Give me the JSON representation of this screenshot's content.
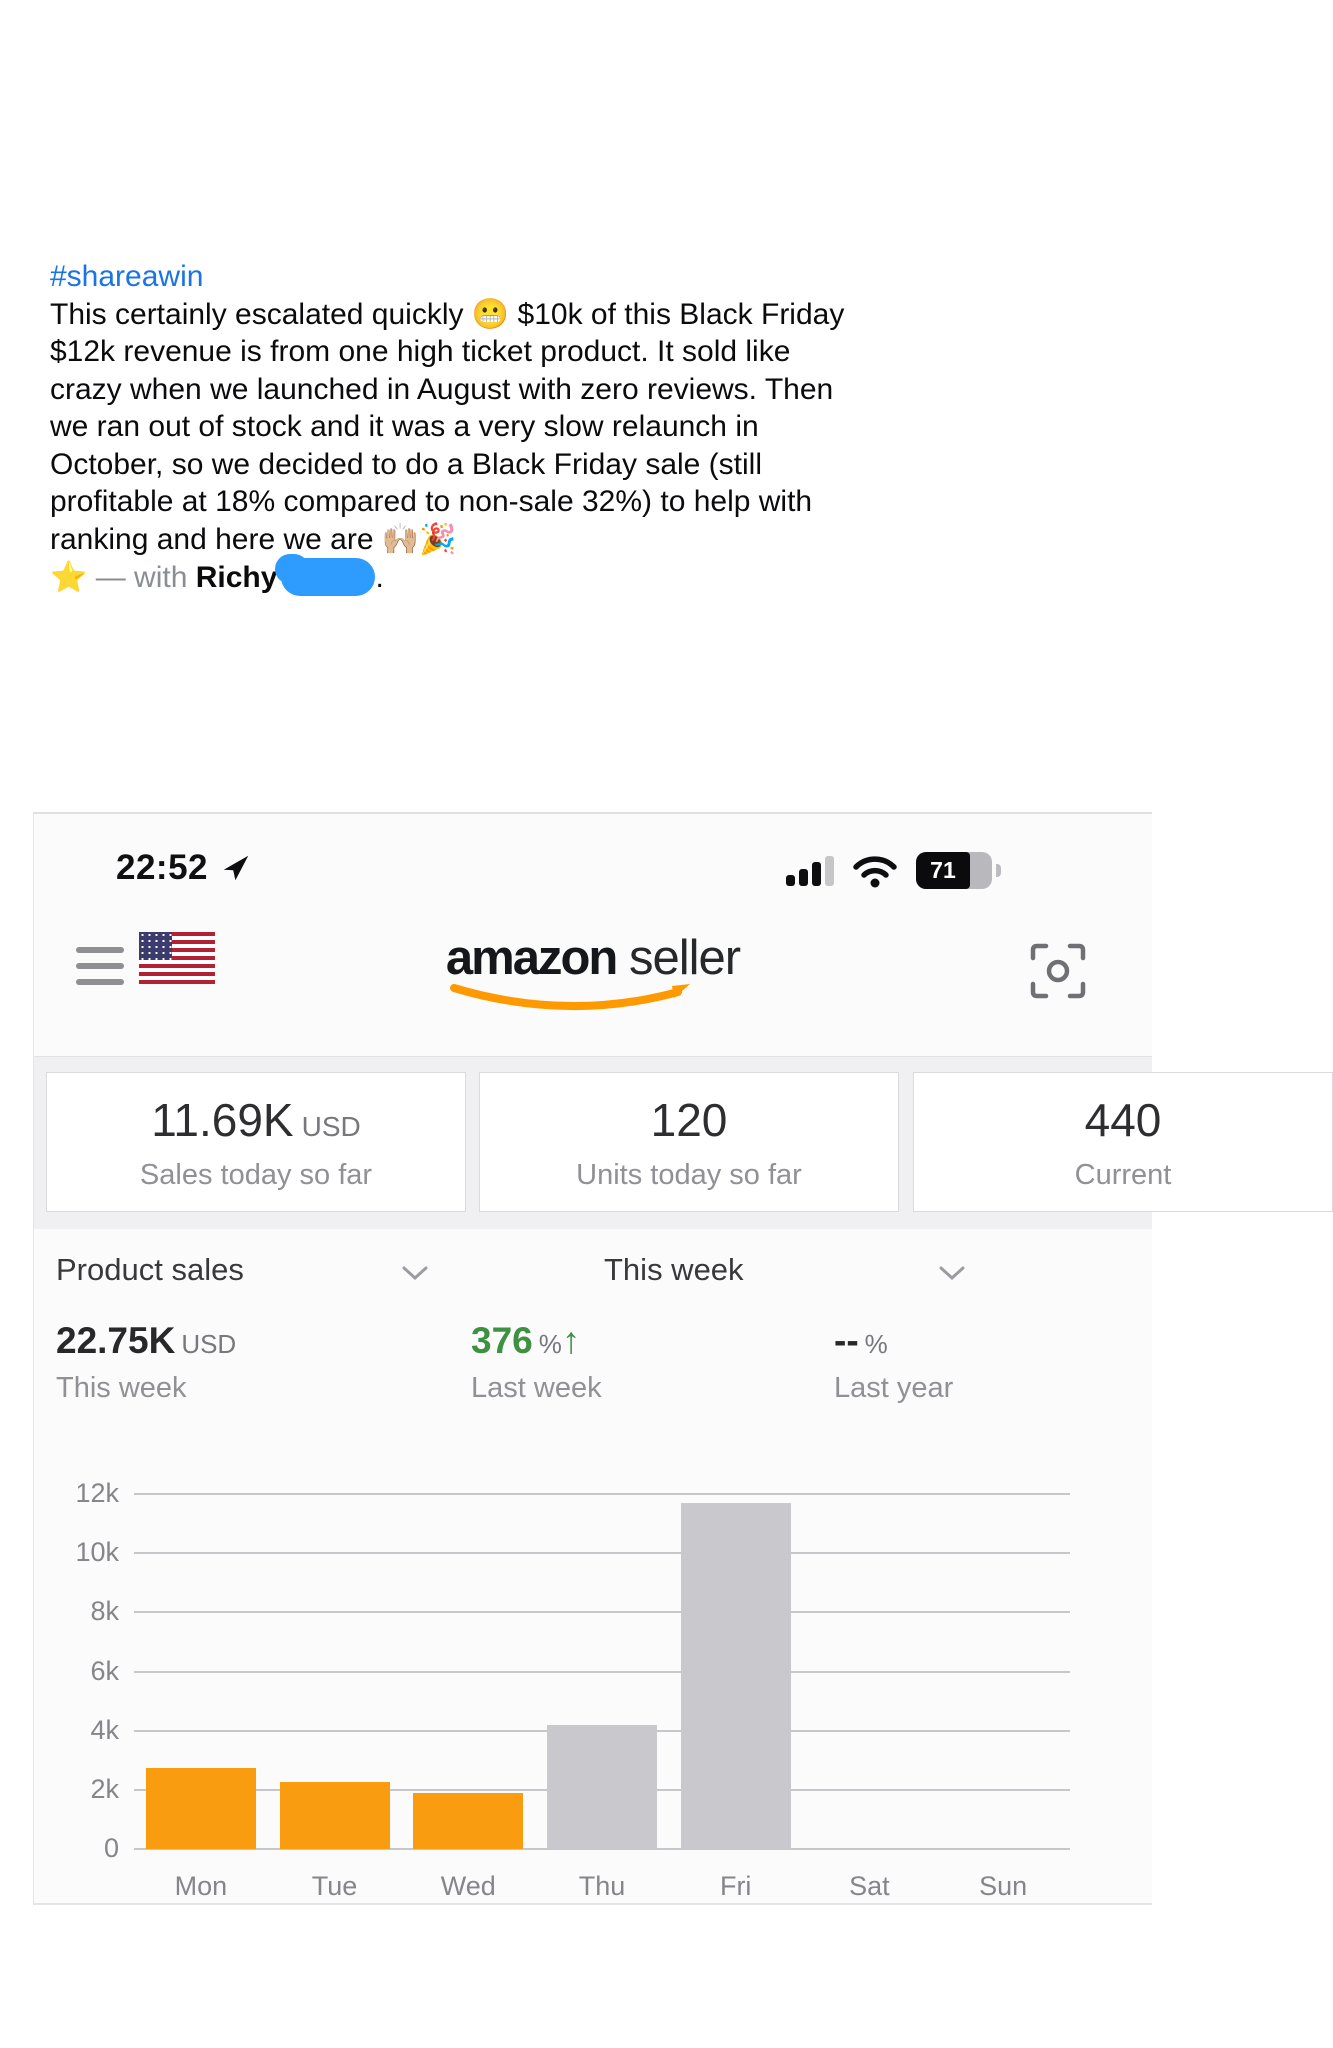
{
  "post": {
    "hashtag": "#shareawin",
    "body": "This certainly escalated quickly 😬 $10k of this Black Friday $12k revenue is from one high ticket product. It sold like crazy when we launched in August with zero reviews. Then we ran out of stock and it was a very slow relaunch in October, so we decided to do a Black Friday sale (still profitable at 18% compared to non-sale 32%) to help with ranking and here we are 🙌🏼🎉",
    "star": "⭐",
    "with_text": "— with",
    "author_first_name": "Richy",
    "period": "."
  },
  "status_bar": {
    "time": "22:52",
    "battery_percent": "71"
  },
  "app_header": {
    "brand": "amazon",
    "brand_suffix": "seller"
  },
  "cards": [
    {
      "value": "11.69K",
      "unit": "USD",
      "label": "Sales today so far"
    },
    {
      "value": "120",
      "unit": "",
      "label": "Units today so far"
    },
    {
      "value": "440",
      "unit": "",
      "label": "Current"
    }
  ],
  "filters": {
    "metric": "Product sales",
    "period": "This week"
  },
  "summary": [
    {
      "value": "22.75K",
      "unit": "USD",
      "label": "This week"
    },
    {
      "value": "376",
      "unit": "%",
      "arrow": "↑",
      "label": "Last week"
    },
    {
      "value": "--",
      "unit": "%",
      "label": "Last year"
    }
  ],
  "chart_data": {
    "type": "bar",
    "title": "Product sales - This week (USD)",
    "categories": [
      "Mon",
      "Tue",
      "Wed",
      "Thu",
      "Fri",
      "Sat",
      "Sun"
    ],
    "values": [
      2750,
      2250,
      1900,
      4200,
      11700,
      0,
      0
    ],
    "bar_colors": [
      "#f99c0f",
      "#f99c0f",
      "#f99c0f",
      "#c9c9cd",
      "#c9c9cd",
      "#c9c9cd",
      "#c9c9cd"
    ],
    "ytick_labels": [
      "12k",
      "10k",
      "8k",
      "6k",
      "4k",
      "2k",
      "0"
    ],
    "ylim": [
      0,
      12000
    ],
    "grid": true,
    "xlabel": "",
    "ylabel": ""
  },
  "colors": {
    "hashtag_blue": "#1b74e4",
    "scribble_blue": "#2e9bff",
    "positive_green": "#3f9142",
    "bar_orange": "#f99c0f",
    "bar_gray": "#c9c9cd",
    "amazon_orange": "#ff9900"
  }
}
